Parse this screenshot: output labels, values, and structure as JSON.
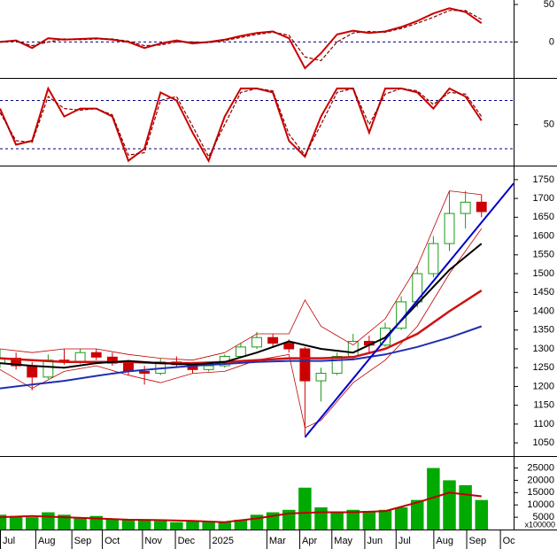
{
  "chart_data": [
    {
      "type": "line",
      "xlim": [
        0,
        64
      ],
      "ylim": [
        -48,
        56
      ],
      "yticks": [
        0,
        50
      ],
      "ref_lines": [
        0
      ],
      "series": [
        {
          "color": "#cc0000",
          "dashed": false,
          "x": [
            0,
            2,
            4,
            6,
            8,
            10,
            12,
            14,
            16,
            18,
            20,
            22,
            24,
            26,
            28,
            30,
            32,
            34,
            36,
            38,
            40,
            42,
            44,
            46,
            48,
            50,
            52,
            54,
            56,
            58,
            60
          ],
          "values": [
            0,
            2,
            -8,
            5,
            3,
            4,
            5,
            3,
            0,
            -8,
            -2,
            2,
            -2,
            0,
            3,
            8,
            12,
            14,
            5,
            -35,
            -15,
            10,
            15,
            12,
            14,
            20,
            28,
            38,
            45,
            40,
            25
          ]
        },
        {
          "color": "#880000",
          "dashed": true,
          "x": [
            0,
            2,
            4,
            6,
            8,
            10,
            12,
            14,
            16,
            18,
            20,
            22,
            24,
            26,
            28,
            30,
            32,
            34,
            36,
            38,
            40,
            42,
            44,
            46,
            48,
            50,
            52,
            54,
            56,
            58,
            60
          ],
          "values": [
            0,
            1,
            -5,
            0,
            4,
            3,
            4,
            4,
            1,
            -5,
            -4,
            0,
            0,
            -1,
            2,
            6,
            10,
            13,
            9,
            -20,
            -25,
            0,
            12,
            14,
            13,
            18,
            25,
            33,
            42,
            42,
            30
          ]
        }
      ]
    },
    {
      "type": "line",
      "xlim": [
        0,
        64
      ],
      "ylim": [
        -1,
        107
      ],
      "yticks": [
        50
      ],
      "ref_lines": [
        20,
        80
      ],
      "series": [
        {
          "color": "#cc0000",
          "dashed": false,
          "x": [
            0,
            2,
            4,
            6,
            8,
            10,
            12,
            14,
            16,
            18,
            20,
            22,
            24,
            26,
            28,
            30,
            32,
            34,
            36,
            38,
            40,
            42,
            44,
            46,
            48,
            50,
            52,
            54,
            56,
            58,
            60
          ],
          "values": [
            70,
            25,
            30,
            95,
            60,
            70,
            70,
            60,
            5,
            20,
            90,
            80,
            40,
            5,
            60,
            95,
            95,
            90,
            30,
            10,
            60,
            95,
            95,
            40,
            95,
            95,
            90,
            70,
            95,
            85,
            55
          ]
        },
        {
          "color": "#880000",
          "dashed": true,
          "x": [
            0,
            2,
            4,
            6,
            8,
            10,
            12,
            14,
            16,
            18,
            20,
            22,
            24,
            26,
            28,
            30,
            32,
            34,
            36,
            38,
            40,
            42,
            44,
            46,
            48,
            50,
            52,
            54,
            56,
            58,
            60
          ],
          "values": [
            65,
            30,
            28,
            85,
            70,
            68,
            70,
            62,
            12,
            15,
            80,
            85,
            48,
            10,
            50,
            90,
            95,
            92,
            38,
            12,
            50,
            90,
            95,
            50,
            88,
            95,
            92,
            75,
            90,
            88,
            60
          ]
        }
      ]
    },
    {
      "type": "candlestick",
      "xlim": [
        0,
        64
      ],
      "ylim": [
        1015,
        1785
      ],
      "yticks": [
        1050,
        1100,
        1150,
        1200,
        1250,
        1300,
        1350,
        1400,
        1450,
        1500,
        1550,
        1600,
        1650,
        1700,
        1750
      ],
      "up_color": "#1a9a1a",
      "down_color": "#cc0000",
      "x": [
        0,
        2,
        4,
        6,
        8,
        10,
        12,
        14,
        16,
        18,
        20,
        22,
        24,
        26,
        28,
        30,
        32,
        34,
        36,
        38,
        40,
        42,
        44,
        46,
        48,
        50,
        52,
        54,
        56,
        58,
        60
      ],
      "open": [
        1262,
        1275,
        1255,
        1225,
        1270,
        1265,
        1290,
        1278,
        1262,
        1240,
        1235,
        1265,
        1258,
        1245,
        1255,
        1280,
        1305,
        1330,
        1315,
        1300,
        1215,
        1235,
        1280,
        1320,
        1310,
        1355,
        1425,
        1500,
        1580,
        1660,
        1690
      ],
      "high": [
        1300,
        1290,
        1265,
        1285,
        1300,
        1300,
        1300,
        1290,
        1270,
        1255,
        1275,
        1280,
        1265,
        1262,
        1285,
        1315,
        1345,
        1340,
        1325,
        1305,
        1250,
        1290,
        1340,
        1335,
        1370,
        1440,
        1520,
        1600,
        1720,
        1720,
        1710
      ],
      "low": [
        1250,
        1245,
        1190,
        1220,
        1258,
        1260,
        1270,
        1255,
        1230,
        1205,
        1230,
        1250,
        1235,
        1240,
        1250,
        1275,
        1300,
        1305,
        1290,
        1070,
        1160,
        1230,
        1270,
        1290,
        1305,
        1350,
        1410,
        1490,
        1560,
        1620,
        1650
      ],
      "close": [
        1275,
        1255,
        1225,
        1270,
        1265,
        1290,
        1278,
        1262,
        1240,
        1235,
        1265,
        1258,
        1245,
        1255,
        1280,
        1305,
        1330,
        1315,
        1300,
        1215,
        1235,
        1280,
        1320,
        1310,
        1355,
        1425,
        1500,
        1580,
        1660,
        1690,
        1665
      ],
      "lines": [
        {
          "color": "#c00000",
          "width": 0.8,
          "x": [
            0,
            4,
            8,
            12,
            16,
            20,
            24,
            28,
            32,
            36,
            38,
            40,
            44,
            48,
            52,
            56,
            60
          ],
          "values": [
            1300,
            1290,
            1300,
            1300,
            1285,
            1275,
            1270,
            1290,
            1340,
            1340,
            1430,
            1360,
            1310,
            1380,
            1520,
            1720,
            1710
          ]
        },
        {
          "color": "#c00000",
          "width": 0.8,
          "x": [
            0,
            4,
            8,
            12,
            16,
            20,
            24,
            28,
            32,
            36,
            38,
            40,
            44,
            48,
            52,
            56,
            60
          ],
          "values": [
            1245,
            1195,
            1240,
            1255,
            1230,
            1210,
            1235,
            1240,
            1270,
            1285,
            1090,
            1110,
            1210,
            1270,
            1360,
            1500,
            1620
          ]
        },
        {
          "color": "#1f2fb0",
          "width": 2,
          "x": [
            0,
            4,
            8,
            12,
            16,
            20,
            24,
            28,
            32,
            36,
            40,
            44,
            48,
            52,
            56,
            60
          ],
          "values": [
            1195,
            1205,
            1215,
            1228,
            1240,
            1248,
            1255,
            1260,
            1265,
            1268,
            1268,
            1272,
            1285,
            1305,
            1330,
            1360
          ]
        },
        {
          "color": "#d01010",
          "width": 2.5,
          "x": [
            0,
            4,
            8,
            12,
            16,
            20,
            24,
            28,
            32,
            36,
            40,
            44,
            48,
            52,
            56,
            60
          ],
          "values": [
            1275,
            1270,
            1265,
            1265,
            1265,
            1262,
            1262,
            1265,
            1270,
            1275,
            1275,
            1278,
            1300,
            1340,
            1400,
            1455
          ]
        },
        {
          "color": "#000000",
          "width": 2,
          "x": [
            0,
            4,
            8,
            12,
            16,
            20,
            24,
            28,
            32,
            36,
            40,
            44,
            48,
            52,
            56,
            60
          ],
          "values": [
            1262,
            1255,
            1250,
            1262,
            1268,
            1262,
            1258,
            1265,
            1290,
            1320,
            1300,
            1290,
            1330,
            1420,
            1510,
            1580
          ]
        },
        {
          "color": "#0000cc",
          "width": 2,
          "x": [
            38,
            64
          ],
          "values": [
            1065,
            1740
          ]
        }
      ]
    },
    {
      "type": "bar",
      "xlim": [
        0,
        64
      ],
      "ylim": [
        0,
        29500
      ],
      "yticks": [
        5000,
        10000,
        15000,
        20000,
        25000
      ],
      "color": "#00aa00",
      "unit_label": "x100000",
      "x": [
        0,
        2,
        4,
        6,
        8,
        10,
        12,
        14,
        16,
        18,
        20,
        22,
        24,
        26,
        28,
        30,
        32,
        34,
        36,
        38,
        40,
        42,
        44,
        46,
        48,
        50,
        52,
        54,
        56,
        58,
        60
      ],
      "values": [
        6000,
        5500,
        5000,
        7000,
        6000,
        5000,
        5500,
        4500,
        4000,
        4000,
        3500,
        3000,
        3500,
        3000,
        3000,
        4000,
        6000,
        7000,
        8000,
        17000,
        9000,
        7000,
        8000,
        7500,
        8000,
        9000,
        12000,
        25000,
        20000,
        18000,
        12000
      ],
      "lines": [
        {
          "color": "#c00000",
          "width": 2,
          "x": [
            0,
            4,
            8,
            12,
            16,
            20,
            24,
            28,
            32,
            36,
            40,
            44,
            48,
            52,
            56,
            60
          ],
          "values": [
            5000,
            5500,
            5000,
            4500,
            4000,
            3800,
            3500,
            3000,
            4500,
            6500,
            7000,
            7000,
            7500,
            11000,
            15000,
            13500
          ]
        }
      ],
      "xticks": [
        {
          "value": 0,
          "label": "Jul"
        },
        {
          "value": 4.4,
          "label": "Aug"
        },
        {
          "value": 8.9,
          "label": "Sep"
        },
        {
          "value": 12.7,
          "label": "Oct"
        },
        {
          "value": 17.7,
          "label": "Nov"
        },
        {
          "value": 21.8,
          "label": "Dec"
        },
        {
          "value": 26.1,
          "label": "2025"
        },
        {
          "value": 33.2,
          "label": "Mar"
        },
        {
          "value": 37.3,
          "label": "Apr"
        },
        {
          "value": 41.3,
          "label": "May"
        },
        {
          "value": 45.4,
          "label": "Jun"
        },
        {
          "value": 49.3,
          "label": "Jul"
        },
        {
          "value": 54,
          "label": "Aug"
        },
        {
          "value": 58.1,
          "label": "Sep"
        },
        {
          "value": 62.3,
          "label": "Oc"
        }
      ]
    }
  ]
}
